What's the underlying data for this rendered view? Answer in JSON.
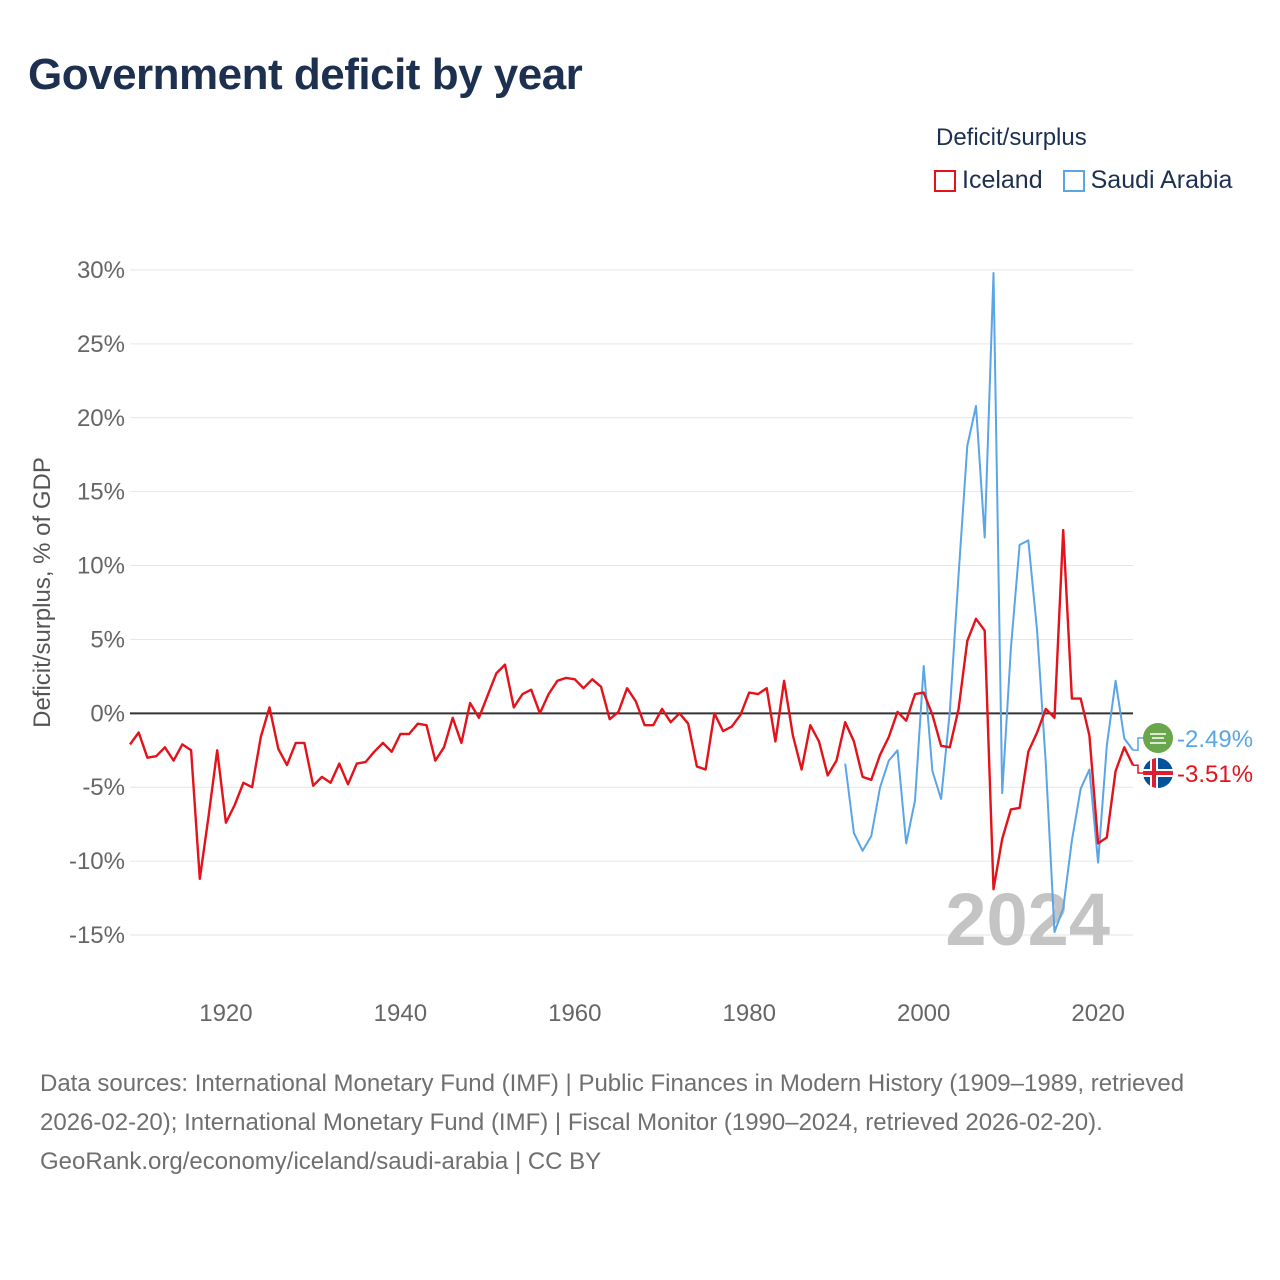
{
  "title": "Government deficit by year",
  "legend": {
    "title": "Deficit/surplus",
    "items": [
      {
        "name": "Iceland",
        "color": "#e3121b"
      },
      {
        "name": "Saudi Arabia",
        "color": "#5aa5e6"
      }
    ]
  },
  "year_watermark": "2024",
  "footer": {
    "sources": "Data sources: International Monetary Fund (IMF) | Public Finances in Modern History (1909–1989, retrieved 2026-02-20); International Monetary Fund (IMF) | Fiscal Monitor (1990–2024, retrieved 2026-02-20).",
    "attribution": "GeoRank.org/economy/iceland/saudi-arabia | CC BY"
  },
  "chart_data": {
    "type": "line",
    "title": "Government deficit by year",
    "xlabel": "",
    "ylabel": "Deficit/surplus, % of GDP",
    "xlim": [
      1909,
      2024
    ],
    "ylim": [
      -18,
      32
    ],
    "x_ticks": [
      1920,
      1940,
      1960,
      1980,
      2000,
      2020
    ],
    "x_tick_labels": [
      "1920",
      "1940",
      "1960",
      "1980",
      "2000",
      "2020"
    ],
    "y_ticks": [
      -15,
      -10,
      -5,
      0,
      5,
      10,
      15,
      20,
      25,
      30
    ],
    "y_tick_labels": [
      "-15%",
      "-10%",
      "-5%",
      "0%",
      "5%",
      "10%",
      "15%",
      "20%",
      "25%",
      "30%"
    ],
    "grid": true,
    "legend_position": "top-right",
    "series": [
      {
        "name": "Iceland",
        "color": "#e3121b",
        "end_label": "-3.51%",
        "x": [
          1909,
          1910,
          1911,
          1912,
          1913,
          1914,
          1915,
          1916,
          1917,
          1918,
          1919,
          1920,
          1921,
          1922,
          1923,
          1924,
          1925,
          1926,
          1927,
          1928,
          1929,
          1930,
          1931,
          1932,
          1933,
          1934,
          1935,
          1936,
          1937,
          1938,
          1939,
          1940,
          1941,
          1942,
          1943,
          1944,
          1945,
          1946,
          1947,
          1948,
          1949,
          1950,
          1951,
          1952,
          1953,
          1954,
          1955,
          1956,
          1957,
          1958,
          1959,
          1960,
          1961,
          1962,
          1963,
          1964,
          1965,
          1966,
          1967,
          1968,
          1969,
          1970,
          1971,
          1972,
          1973,
          1974,
          1975,
          1976,
          1977,
          1978,
          1979,
          1980,
          1981,
          1982,
          1983,
          1984,
          1985,
          1986,
          1987,
          1988,
          1989,
          1990,
          1991,
          1992,
          1993,
          1994,
          1995,
          1996,
          1997,
          1998,
          1999,
          2000,
          2001,
          2002,
          2003,
          2004,
          2005,
          2006,
          2007,
          2008,
          2009,
          2010,
          2011,
          2012,
          2013,
          2014,
          2015,
          2016,
          2017,
          2018,
          2019,
          2020,
          2021,
          2022,
          2023,
          2024
        ],
        "y": [
          -2.1,
          -1.3,
          -3.0,
          -2.9,
          -2.3,
          -3.2,
          -2.1,
          -2.5,
          -11.2,
          -7.0,
          -2.5,
          -7.4,
          -6.2,
          -4.7,
          -5.0,
          -1.6,
          0.4,
          -2.4,
          -3.5,
          -2.0,
          -2.0,
          -4.9,
          -4.3,
          -4.7,
          -3.4,
          -4.8,
          -3.4,
          -3.3,
          -2.6,
          -2.0,
          -2.6,
          -1.4,
          -1.4,
          -0.7,
          -0.8,
          -3.2,
          -2.3,
          -0.3,
          -2.0,
          0.7,
          -0.3,
          1.2,
          2.7,
          3.3,
          0.4,
          1.3,
          1.6,
          0.0,
          1.3,
          2.2,
          2.4,
          2.3,
          1.7,
          2.3,
          1.8,
          -0.4,
          0.1,
          1.7,
          0.8,
          -0.8,
          -0.8,
          0.3,
          -0.6,
          0.0,
          -0.7,
          -3.6,
          -3.8,
          0.0,
          -1.2,
          -0.9,
          -0.1,
          1.4,
          1.3,
          1.7,
          -1.9,
          2.2,
          -1.5,
          -3.8,
          -0.8,
          -1.9,
          -4.2,
          -3.2,
          -0.6,
          -1.9,
          -4.3,
          -4.5,
          -2.8,
          -1.6,
          0.1,
          -0.5,
          1.3,
          1.4,
          -0.1,
          -2.2,
          -2.3,
          0.3,
          4.9,
          6.4,
          5.6,
          -11.9,
          -8.5,
          -6.5,
          -6.4,
          -2.6,
          -1.3,
          0.3,
          -0.3,
          12.4,
          1.0,
          1.0,
          -1.5,
          -8.8,
          -8.4,
          -3.9,
          -2.3,
          -3.51
        ]
      },
      {
        "name": "Saudi Arabia",
        "color": "#5aa5e6",
        "end_label": "-2.49%",
        "x": [
          1991,
          1992,
          1993,
          1994,
          1995,
          1996,
          1997,
          1998,
          1999,
          2000,
          2001,
          2002,
          2003,
          2004,
          2005,
          2006,
          2007,
          2008,
          2009,
          2010,
          2011,
          2012,
          2013,
          2014,
          2015,
          2016,
          2017,
          2018,
          2019,
          2020,
          2021,
          2022,
          2023,
          2024
        ],
        "y": [
          -3.4,
          -8.1,
          -9.3,
          -8.3,
          -5.0,
          -3.2,
          -2.5,
          -8.8,
          -5.9,
          3.2,
          -3.9,
          -5.8,
          0.1,
          9.4,
          18.1,
          20.8,
          11.9,
          29.8,
          -5.4,
          4.4,
          11.4,
          11.7,
          5.6,
          -3.4,
          -14.8,
          -13.2,
          -8.6,
          -5.1,
          -3.8,
          -10.1,
          -2.2,
          2.2,
          -1.7,
          -2.49
        ]
      }
    ]
  }
}
